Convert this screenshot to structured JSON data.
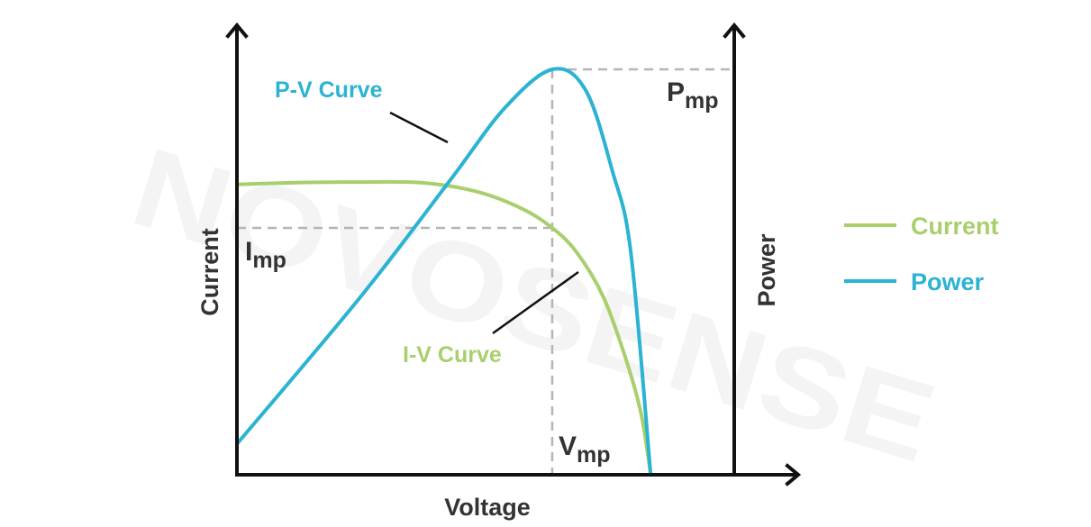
{
  "chart_data": {
    "type": "line",
    "title": "",
    "xlabel": "Voltage",
    "ylabel_left": "Current",
    "ylabel_right": "Power",
    "xlim": [
      0,
      1
    ],
    "ylim": [
      0,
      1
    ],
    "grid": false,
    "legend": {
      "placement": "right",
      "entries": [
        "Current",
        "Power"
      ]
    },
    "colors": {
      "current": "#a9cf6d",
      "power": "#2bb3d3",
      "axis": "#111111",
      "guide": "#b5b5b5",
      "text": "#333333"
    },
    "series": [
      {
        "name": "Current",
        "curve_label": "I-V Curve",
        "x": [
          0,
          0.103,
          0.248,
          0.375,
          0.484,
          0.574,
          0.634,
          0.683,
          0.737,
          0.783,
          0.813,
          0.832
        ],
        "y": [
          0.716,
          0.72,
          0.722,
          0.72,
          0.698,
          0.656,
          0.609,
          0.549,
          0.438,
          0.282,
          0.149,
          0
        ]
      },
      {
        "name": "Power",
        "curve_label": "P-V Curve",
        "x": [
          0,
          0.248,
          0.429,
          0.538,
          0.634,
          0.701,
          0.755,
          0.792,
          0.832
        ],
        "y": [
          0.076,
          0.438,
          0.727,
          0.904,
          1,
          0.949,
          0.749,
          0.549,
          0
        ]
      }
    ],
    "mpp": {
      "v": 0.634,
      "i": 0.609,
      "p": 1
    },
    "annotations": {
      "pmp_main": "P",
      "pmp_sub": "mp",
      "imp_main": "I",
      "imp_sub": "mp",
      "vmp_main": "V",
      "vmp_sub": "mp"
    },
    "watermark": "NOVOSENSE"
  }
}
